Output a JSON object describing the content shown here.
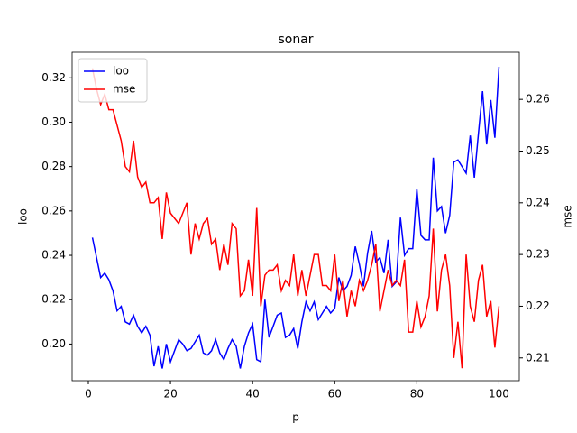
{
  "chart_data": {
    "type": "line",
    "title": "sonar",
    "xlabel": "p",
    "ylabel": "loo",
    "y2label": "mse",
    "x": [
      1,
      2,
      3,
      4,
      5,
      6,
      7,
      8,
      9,
      10,
      11,
      12,
      13,
      14,
      15,
      16,
      17,
      18,
      19,
      20,
      21,
      22,
      23,
      24,
      25,
      26,
      27,
      28,
      29,
      30,
      31,
      32,
      33,
      34,
      35,
      36,
      37,
      38,
      39,
      40,
      41,
      42,
      43,
      44,
      45,
      46,
      47,
      48,
      49,
      50,
      51,
      52,
      53,
      54,
      55,
      56,
      57,
      58,
      59,
      60,
      61,
      62,
      63,
      64,
      65,
      66,
      67,
      68,
      69,
      70,
      71,
      72,
      73,
      74,
      75,
      76,
      77,
      78,
      79,
      80,
      81,
      82,
      83,
      84,
      85,
      86,
      87,
      88,
      89,
      90,
      91,
      92,
      93,
      94,
      95,
      96,
      97,
      98,
      99,
      100
    ],
    "series": [
      {
        "name": "loo",
        "color": "#0000ff",
        "axis": "y",
        "values": [
          0.248,
          0.239,
          0.23,
          0.232,
          0.229,
          0.224,
          0.215,
          0.217,
          0.21,
          0.209,
          0.213,
          0.208,
          0.205,
          0.208,
          0.204,
          0.19,
          0.199,
          0.189,
          0.2,
          0.192,
          0.197,
          0.202,
          0.2,
          0.197,
          0.198,
          0.201,
          0.204,
          0.196,
          0.195,
          0.197,
          0.202,
          0.196,
          0.193,
          0.198,
          0.202,
          0.199,
          0.189,
          0.199,
          0.205,
          0.209,
          0.193,
          0.192,
          0.22,
          0.203,
          0.208,
          0.213,
          0.214,
          0.203,
          0.204,
          0.207,
          0.198,
          0.21,
          0.219,
          0.215,
          0.219,
          0.211,
          0.214,
          0.217,
          0.214,
          0.216,
          0.23,
          0.224,
          0.226,
          0.231,
          0.244,
          0.236,
          0.226,
          0.241,
          0.251,
          0.237,
          0.239,
          0.232,
          0.247,
          0.226,
          0.228,
          0.257,
          0.24,
          0.243,
          0.243,
          0.27,
          0.249,
          0.247,
          0.247,
          0.284,
          0.26,
          0.262,
          0.25,
          0.258,
          0.282,
          0.283,
          0.28,
          0.277,
          0.294,
          0.275,
          0.295,
          0.314,
          0.29,
          0.31,
          0.293,
          0.325
        ]
      },
      {
        "name": "mse",
        "color": "#ff0000",
        "axis": "y2",
        "values": [
          0.266,
          0.262,
          0.259,
          0.261,
          0.258,
          0.258,
          0.255,
          0.252,
          0.247,
          0.246,
          0.252,
          0.245,
          0.243,
          0.244,
          0.24,
          0.24,
          0.241,
          0.233,
          0.242,
          0.238,
          0.237,
          0.236,
          0.238,
          0.24,
          0.23,
          0.236,
          0.233,
          0.236,
          0.237,
          0.232,
          0.233,
          0.227,
          0.232,
          0.228,
          0.236,
          0.235,
          0.222,
          0.223,
          0.229,
          0.222,
          0.239,
          0.22,
          0.226,
          0.227,
          0.227,
          0.228,
          0.223,
          0.225,
          0.224,
          0.23,
          0.222,
          0.227,
          0.222,
          0.226,
          0.23,
          0.23,
          0.224,
          0.224,
          0.223,
          0.23,
          0.221,
          0.225,
          0.218,
          0.223,
          0.22,
          0.225,
          0.223,
          0.225,
          0.228,
          0.232,
          0.219,
          0.223,
          0.227,
          0.224,
          0.225,
          0.224,
          0.229,
          0.215,
          0.215,
          0.221,
          0.216,
          0.218,
          0.222,
          0.235,
          0.219,
          0.227,
          0.23,
          0.224,
          0.21,
          0.217,
          0.208,
          0.23,
          0.22,
          0.217,
          0.225,
          0.228,
          0.218,
          0.221,
          0.212,
          0.22
        ]
      }
    ],
    "xlim": [
      -3.95,
      104.95
    ],
    "xticks": [
      0,
      20,
      40,
      60,
      80,
      100
    ],
    "ylim": [
      0.1835,
      0.3315
    ],
    "yticks": [
      {
        "value": 0.2,
        "label": "0.20"
      },
      0.22,
      0.24,
      0.26,
      0.28,
      {
        "value": 0.3,
        "label": "0.30"
      },
      0.32
    ],
    "y2lim": [
      0.2056,
      0.2691
    ],
    "y2ticks": [
      0.21,
      0.22,
      0.23,
      0.24,
      0.25,
      0.26
    ],
    "legend": "upper left"
  }
}
